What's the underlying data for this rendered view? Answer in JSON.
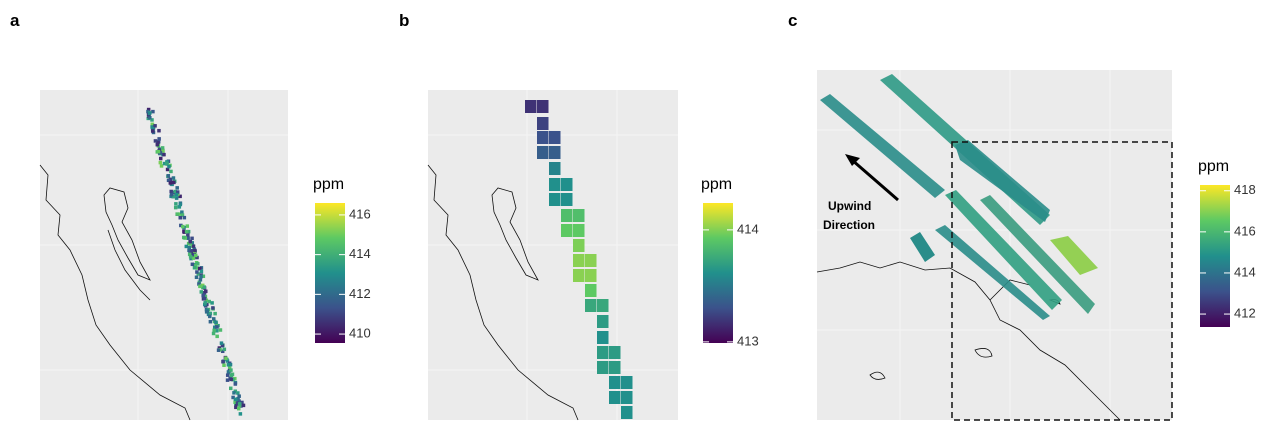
{
  "panels": [
    {
      "label": "a",
      "legend": {
        "title": "ppm",
        "lim": [
          409.55,
          416.6
        ],
        "ticks": [
          410,
          412,
          414,
          416
        ]
      }
    },
    {
      "label": "b",
      "legend": {
        "title": "ppm",
        "lim": [
          412.99,
          414.24
        ],
        "ticks": [
          413,
          414
        ]
      }
    },
    {
      "label": "c",
      "legend": {
        "title": "ppm",
        "lim": [
          411.37,
          418.28
        ],
        "ticks": [
          412,
          414,
          416,
          418
        ]
      },
      "annotation": [
        "Upwind",
        "Direction"
      ]
    }
  ]
}
